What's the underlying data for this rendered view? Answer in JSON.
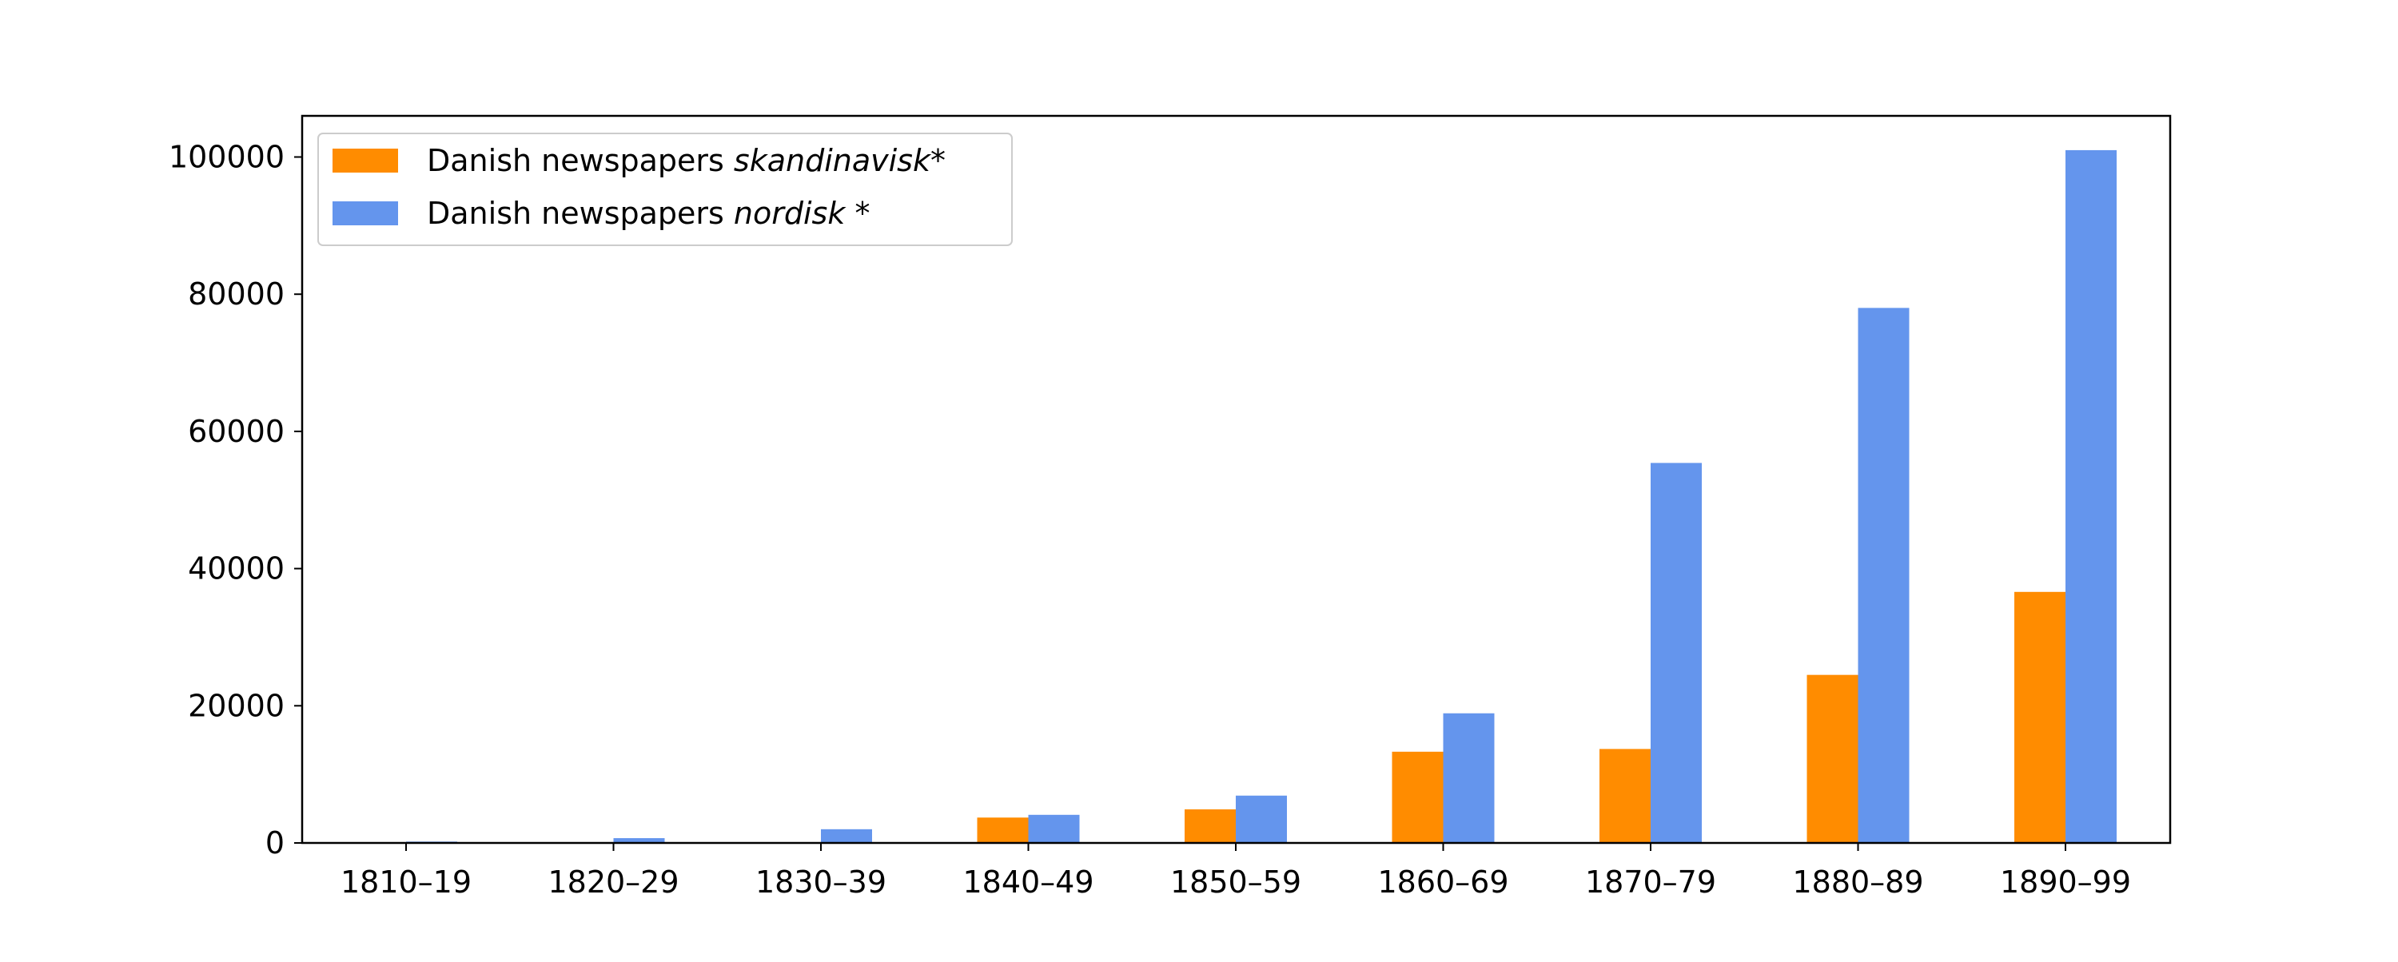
{
  "chart_data": {
    "type": "bar",
    "title": "",
    "xlabel": "",
    "ylabel": "",
    "categories": [
      "1810–19",
      "1820–29",
      "1830–39",
      "1840–49",
      "1850–59",
      "1860–69",
      "1870–79",
      "1880–89",
      "1890–99"
    ],
    "series": [
      {
        "name": "Danish newspapers skandinavisk*",
        "name_prefix": "Danish newspapers ",
        "name_term": "skandinavisk",
        "name_suffix": "*",
        "color": "#ff8c00",
        "values": [
          0,
          0,
          0,
          3700,
          4900,
          13300,
          13700,
          24500,
          36600
        ]
      },
      {
        "name": "Danish newspapers nordisk *",
        "name_prefix": "Danish newspapers ",
        "name_term": "nordisk",
        "name_suffix": " *",
        "color": "#6495ed",
        "values": [
          200,
          700,
          2000,
          4100,
          6900,
          18900,
          55400,
          78000,
          101000
        ]
      }
    ],
    "yticks": [
      0,
      20000,
      40000,
      60000,
      80000,
      100000
    ],
    "ylim": [
      0,
      106000
    ],
    "grid": false,
    "legend_position": "upper-left"
  }
}
